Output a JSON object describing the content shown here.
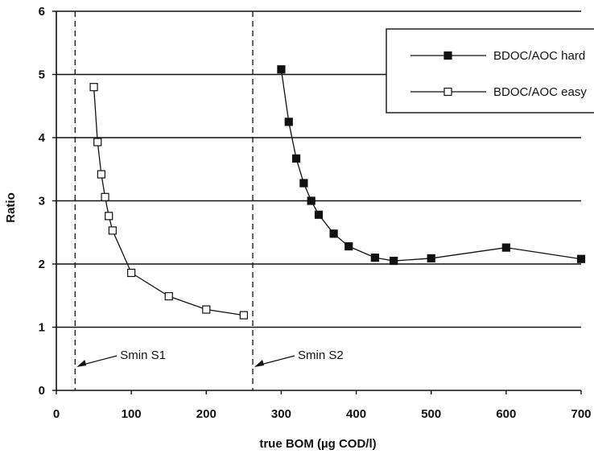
{
  "chart_data": {
    "type": "line",
    "xlabel": "true BOM (µg COD/l)",
    "ylabel": "Ratio",
    "xlim": [
      0,
      700
    ],
    "ylim": [
      0,
      6
    ],
    "x_ticks": [
      "0",
      "100",
      "200",
      "300",
      "400",
      "500",
      "600",
      "700"
    ],
    "y_ticks": [
      "0",
      "1",
      "2",
      "3",
      "4",
      "5",
      "6"
    ],
    "grid": "horizontal",
    "legend_position": "top-right",
    "series": [
      {
        "name": "BDOC/AOC hard",
        "marker": "filled-square",
        "color": "#111111",
        "x": [
          300,
          310,
          320,
          330,
          340,
          350,
          370,
          390,
          425,
          450,
          500,
          600,
          700
        ],
        "y": [
          5.08,
          4.25,
          3.67,
          3.28,
          3.0,
          2.78,
          2.48,
          2.28,
          2.1,
          2.05,
          2.09,
          2.26,
          2.08
        ]
      },
      {
        "name": "BDOC/AOC easy",
        "marker": "open-square",
        "color": "#111111",
        "x": [
          50,
          55,
          60,
          65,
          70,
          75,
          100,
          150,
          200,
          250
        ],
        "y": [
          4.8,
          3.93,
          3.42,
          3.06,
          2.76,
          2.53,
          1.86,
          1.49,
          1.28,
          1.19
        ]
      }
    ],
    "reference_lines": [
      {
        "label": "Smin S1",
        "x": 25
      },
      {
        "label": "Smin S2",
        "x": 262
      }
    ]
  }
}
